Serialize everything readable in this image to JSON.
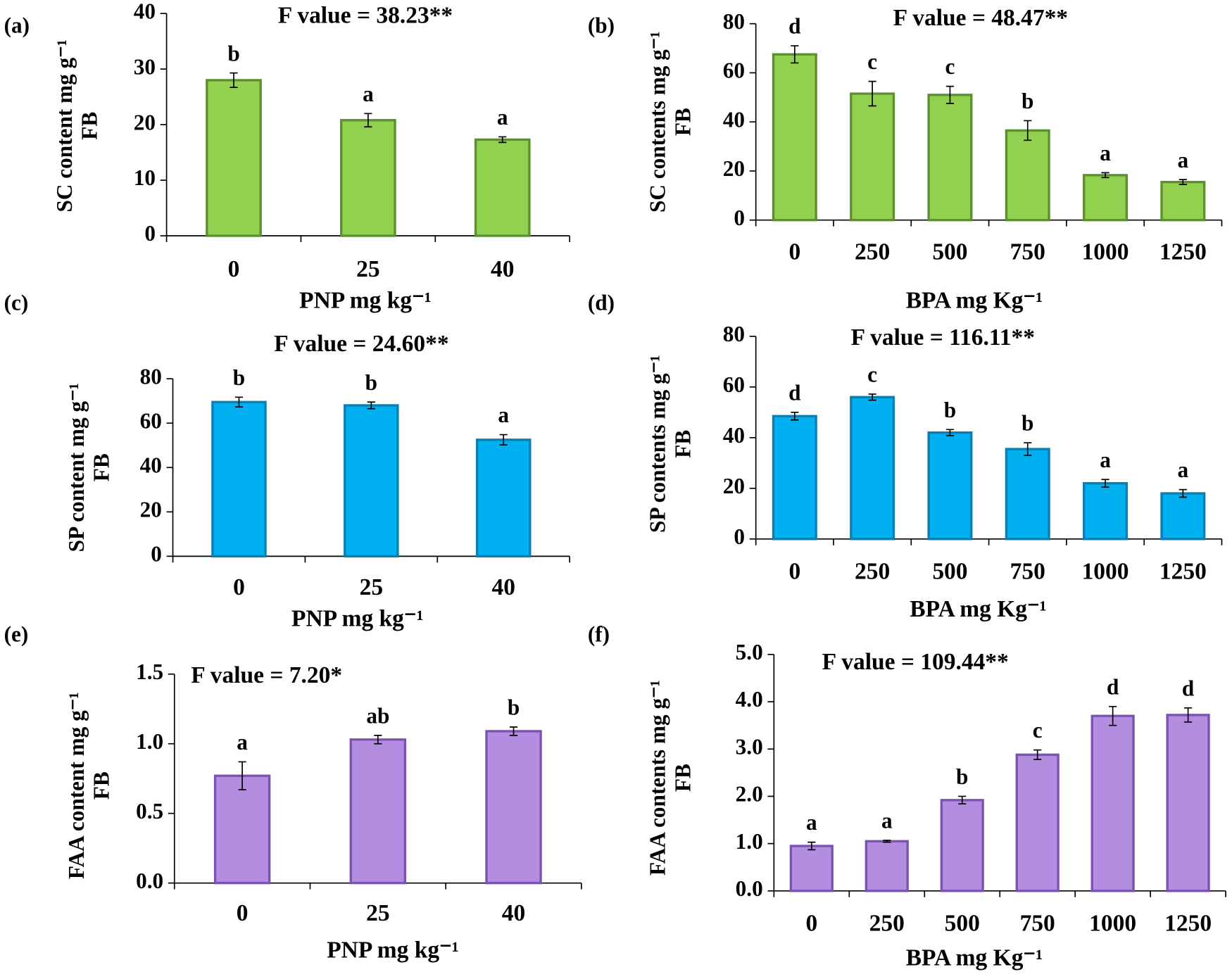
{
  "chart_data": [
    {
      "type": "bar",
      "panel": "(a)",
      "title": "F value = 38.23**",
      "y_label": [
        "SC content mg g⁻¹",
        "FB"
      ],
      "x_label": "PNP mg kg⁻¹",
      "categories": [
        "0",
        "25",
        "40"
      ],
      "values": [
        28,
        20.8,
        17.3
      ],
      "errors": [
        1.3,
        1.2,
        0.5
      ],
      "letters": [
        "b",
        "a",
        "a"
      ],
      "color": "#92d050",
      "ylim": [
        0,
        40
      ],
      "yticks": [
        0,
        10,
        20,
        30,
        40
      ]
    },
    {
      "type": "bar",
      "panel": "(b)",
      "title": "F value = 48.47**",
      "y_label": [
        "SC contents mg g⁻¹",
        "FB"
      ],
      "x_label": "BPA mg Kg⁻¹",
      "categories": [
        "0",
        "250",
        "500",
        "750",
        "1000",
        "1250"
      ],
      "values": [
        67.5,
        51.5,
        51,
        36.5,
        18.3,
        15.5
      ],
      "errors": [
        3.5,
        5,
        3.5,
        4,
        1,
        1
      ],
      "letters": [
        "d",
        "c",
        "c",
        "b",
        "a",
        "a"
      ],
      "color": "#92d050",
      "ylim": [
        0,
        80
      ],
      "yticks": [
        0,
        20,
        40,
        60,
        80
      ]
    },
    {
      "type": "bar",
      "panel": "(c)",
      "title": "F value = 24.60**",
      "y_label": [
        "SP content mg g⁻¹",
        "FB"
      ],
      "x_label": "PNP mg kg⁻¹",
      "categories": [
        "0",
        "25",
        "40"
      ],
      "values": [
        69.5,
        68,
        52.5
      ],
      "errors": [
        2.2,
        1.5,
        2.3
      ],
      "letters": [
        "b",
        "b",
        "a"
      ],
      "color": "#00b0f0",
      "ylim": [
        0,
        80
      ],
      "yticks": [
        0,
        20,
        40,
        60,
        80
      ]
    },
    {
      "type": "bar",
      "panel": "(d)",
      "title": "F value = 116.11**",
      "y_label": [
        "SP contents mg g⁻¹",
        "FB"
      ],
      "x_label": "BPA mg Kg⁻¹",
      "categories": [
        "0",
        "250",
        "500",
        "750",
        "1000",
        "1250"
      ],
      "values": [
        48.5,
        56,
        42,
        35.5,
        22,
        18
      ],
      "errors": [
        1.5,
        1.2,
        1.2,
        2.5,
        1.5,
        1.5
      ],
      "letters": [
        "d",
        "c",
        "b",
        "b",
        "a",
        "a"
      ],
      "color": "#00b0f0",
      "ylim": [
        0,
        80
      ],
      "yticks": [
        0,
        20,
        40,
        60,
        80
      ]
    },
    {
      "type": "bar",
      "panel": "(e)",
      "title": "F value = 7.20*",
      "y_label": [
        "FAA content mg g⁻¹",
        "FB"
      ],
      "x_label": "PNP mg kg⁻¹",
      "categories": [
        "0",
        "25",
        "40"
      ],
      "values": [
        0.77,
        1.03,
        1.09
      ],
      "errors": [
        0.1,
        0.03,
        0.03
      ],
      "letters": [
        "a",
        "ab",
        "b"
      ],
      "color": "#b38de0",
      "ylim": [
        0,
        1.5
      ],
      "yticks": [
        {
          "value": 0,
          "label": "0.0"
        },
        {
          "value": 0.5,
          "label": "0.5"
        },
        {
          "value": 1,
          "label": "1.0"
        },
        {
          "value": 1.5,
          "label": "1.5"
        }
      ]
    },
    {
      "type": "bar",
      "panel": "(f)",
      "title": "F value = 109.44**",
      "y_label": [
        "FAA contents mg g⁻¹",
        "FB"
      ],
      "x_label": "BPA mg Kg⁻¹",
      "categories": [
        "0",
        "250",
        "500",
        "750",
        "1000",
        "1250"
      ],
      "values": [
        0.95,
        1.05,
        1.92,
        2.88,
        3.7,
        3.72
      ],
      "errors": [
        0.08,
        0.02,
        0.08,
        0.1,
        0.2,
        0.15
      ],
      "letters": [
        "a",
        "a",
        "b",
        "c",
        "d",
        "d"
      ],
      "color": "#b38de0",
      "ylim": [
        0,
        5
      ],
      "yticks": [
        {
          "value": 0,
          "label": "0.0"
        },
        {
          "value": 1,
          "label": "1.0"
        },
        {
          "value": 2,
          "label": "2.0"
        },
        {
          "value": 3,
          "label": "3.0"
        },
        {
          "value": 4,
          "label": "4.0"
        },
        {
          "value": 5,
          "label": "5.0"
        }
      ]
    }
  ]
}
